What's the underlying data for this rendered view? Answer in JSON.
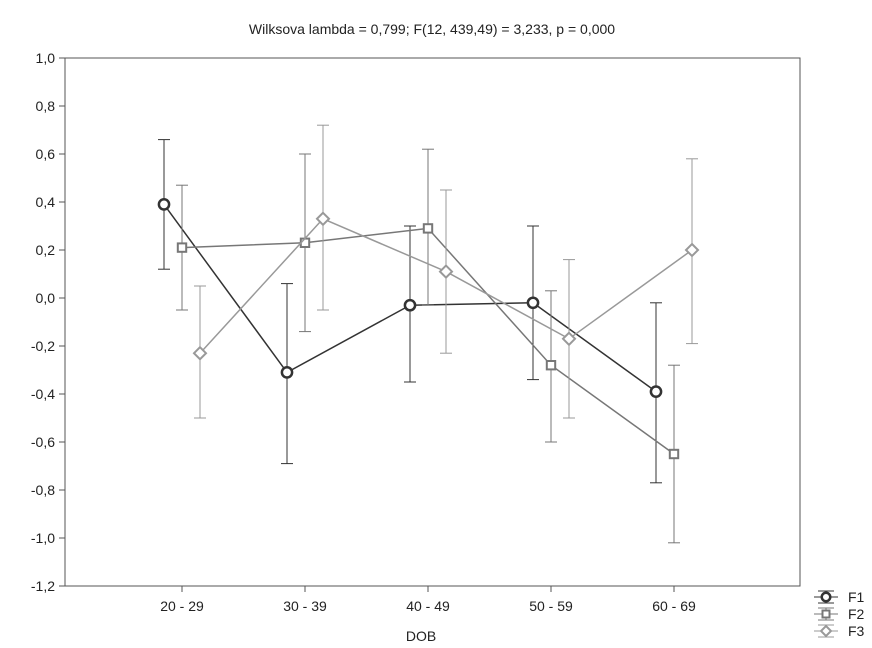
{
  "chart_data": {
    "type": "line",
    "title": "Wilksova lambda = 0,799; F(12, 439,49) = 3,233, p = 0,000",
    "xlabel": "DOB",
    "ylabel": "",
    "categories": [
      "20 - 29",
      "30 - 39",
      "40 - 49",
      "50 - 59",
      "60 - 69"
    ],
    "ylim": [
      -1.2,
      1.0
    ],
    "yticks": [
      "1,0",
      "0,8",
      "0,6",
      "0,4",
      "0,2",
      "0,0",
      "-0,2",
      "-0,4",
      "-0,6",
      "-0,8",
      "-1,0",
      "-1,2"
    ],
    "grid": false,
    "legend": "bottom-right",
    "series": [
      {
        "name": "F1",
        "marker": "circle",
        "color": "#333333",
        "values": [
          0.39,
          -0.31,
          -0.03,
          -0.02,
          -0.39
        ],
        "lower": [
          0.12,
          -0.69,
          -0.35,
          -0.34,
          -0.77
        ],
        "upper": [
          0.66,
          0.06,
          0.3,
          0.3,
          -0.02
        ]
      },
      {
        "name": "F2",
        "marker": "square",
        "color": "#777777",
        "values": [
          0.21,
          0.23,
          0.29,
          -0.28,
          -0.65
        ],
        "lower": [
          -0.05,
          -0.14,
          -0.03,
          -0.6,
          -1.02
        ],
        "upper": [
          0.47,
          0.6,
          0.62,
          0.03,
          -0.28
        ]
      },
      {
        "name": "F3",
        "marker": "diamond",
        "color": "#999999",
        "values": [
          -0.23,
          0.33,
          0.11,
          -0.17,
          0.2
        ],
        "lower": [
          -0.5,
          -0.05,
          -0.23,
          -0.5,
          -0.19
        ],
        "upper": [
          0.05,
          0.72,
          0.45,
          0.16,
          0.58
        ]
      }
    ]
  }
}
